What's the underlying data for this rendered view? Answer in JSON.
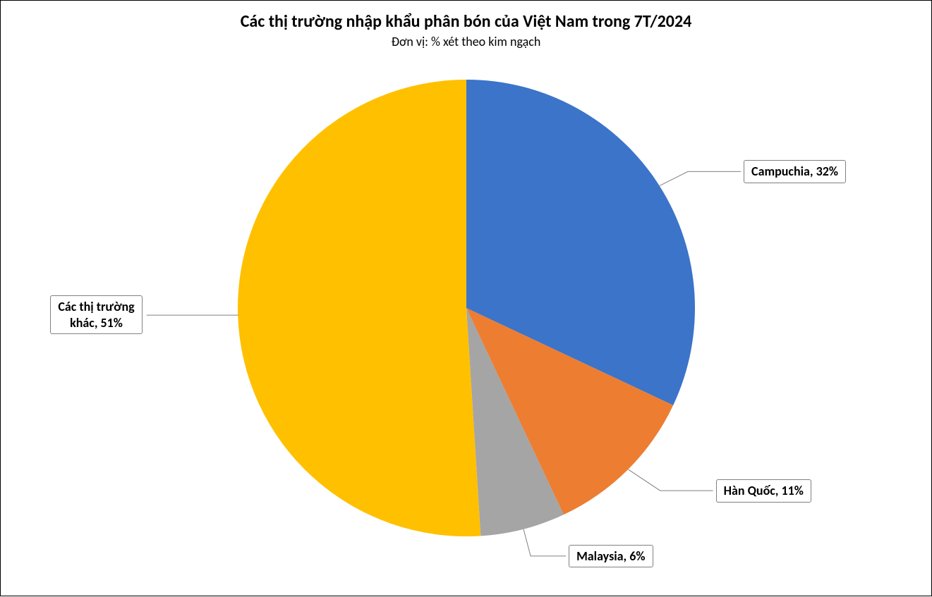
{
  "chart": {
    "type": "pie",
    "title": "Các thị trường nhập khẩu phân bón của Việt Nam trong 7T/2024",
    "subtitle": "Đơn vị: % xét theo kim ngạch",
    "title_fontsize": 24,
    "title_fontweight": 700,
    "subtitle_fontsize": 18,
    "subtitle_fontweight": 400,
    "background_color": "#ffffff",
    "border_color": "#000000",
    "label_fontsize": 18,
    "label_fontweight": 700,
    "label_bg": "#ffffff",
    "label_border": "#808080",
    "leader_color": "#808080",
    "pie_radius": 324,
    "slices": [
      {
        "name": "Campuchia",
        "value": 32,
        "color": "#3b74c9",
        "label": "Campuchia, 32%"
      },
      {
        "name": "Hàn Quốc",
        "value": 11,
        "color": "#ed7d31",
        "label": "Hàn Quốc, 11%"
      },
      {
        "name": "Malaysia",
        "value": 6,
        "color": "#a5a5a5",
        "label": "Malaysia, 6%"
      },
      {
        "name": "Các thị trường khác",
        "value": 51,
        "color": "#ffc000",
        "label": "Các thị trường\nkhác, 51%"
      }
    ]
  }
}
